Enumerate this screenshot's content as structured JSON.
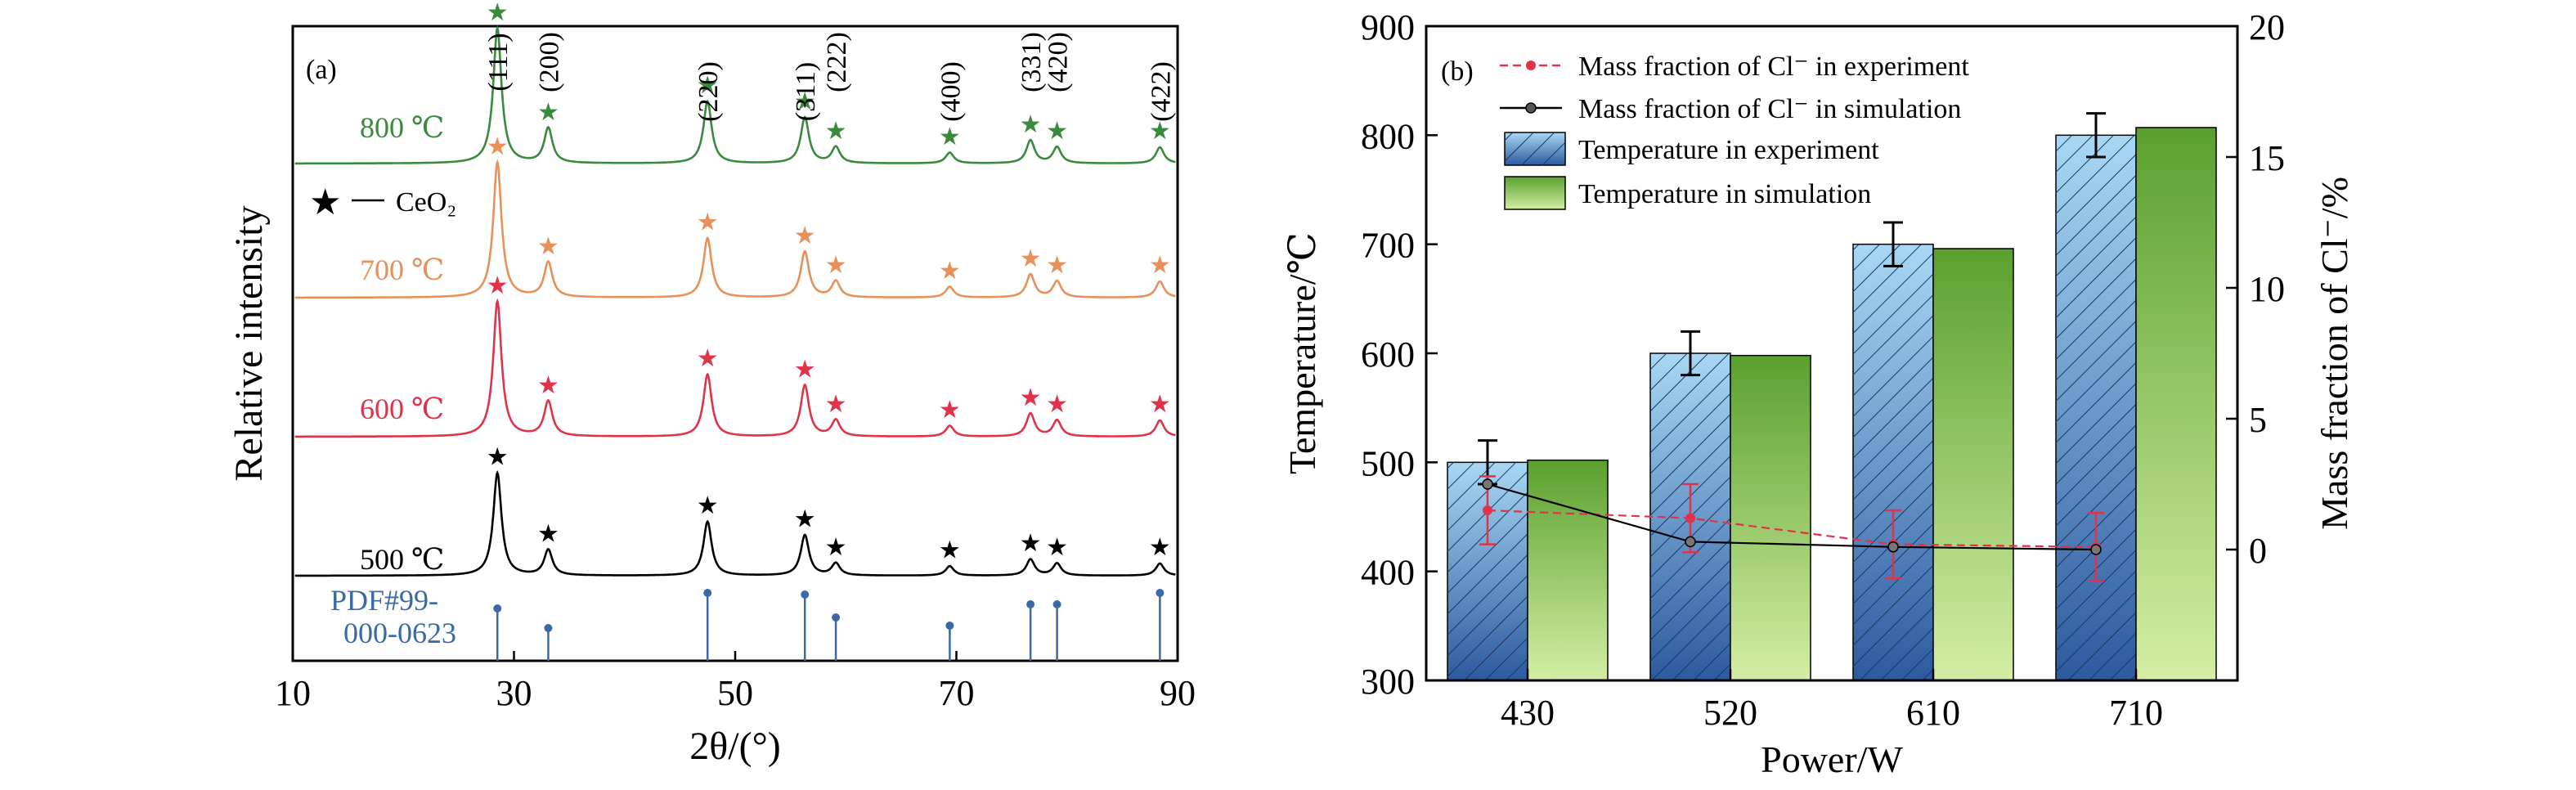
{
  "chart_data": [
    {
      "type": "line",
      "panel_label": "(a)",
      "xlabel": "2θ/(°)",
      "ylabel": "Relative intensity",
      "xlim": [
        10,
        90
      ],
      "xticks": [
        10,
        30,
        50,
        70,
        90
      ],
      "legend": {
        "label": "CeO₂",
        "placement": "upper-left"
      },
      "reference": {
        "name": "PDF#99-000-0623",
        "lines": [
          "PDF#99-",
          "000-0623"
        ],
        "color": "#3a6aa6",
        "peaks": [
          28.5,
          33.1,
          47.5,
          56.3,
          59.1,
          69.4,
          76.7,
          79.1,
          88.4
        ],
        "heights": [
          0.44,
          0.2,
          0.63,
          0.61,
          0.33,
          0.23,
          0.49,
          0.49,
          0.63
        ]
      },
      "peak_labels": [
        {
          "text": "(111)",
          "x": 28.5
        },
        {
          "text": "(200)",
          "x": 33.1
        },
        {
          "text": "(220)",
          "x": 47.5
        },
        {
          "text": "(311)",
          "x": 56.3
        },
        {
          "text": "(222)",
          "x": 59.1
        },
        {
          "text": "(400)",
          "x": 69.4
        },
        {
          "text": "(331)",
          "x": 76.7
        },
        {
          "text": "(420)",
          "x": 79.1
        },
        {
          "text": "(422)",
          "x": 88.4
        }
      ],
      "series": [
        {
          "name": "800 ℃",
          "color": "#3a8a3e",
          "peak_heights": [
            1.0,
            0.26,
            0.46,
            0.34,
            0.12,
            0.08,
            0.17,
            0.12,
            0.12
          ]
        },
        {
          "name": "700 ℃",
          "color": "#e8905a",
          "peak_heights": [
            1.0,
            0.26,
            0.44,
            0.34,
            0.12,
            0.08,
            0.17,
            0.12,
            0.12
          ]
        },
        {
          "name": "600 ℃",
          "color": "#e0334a",
          "peak_heights": [
            1.0,
            0.26,
            0.46,
            0.38,
            0.12,
            0.08,
            0.17,
            0.12,
            0.12
          ]
        },
        {
          "name": "500 ℃",
          "color": "#000000",
          "peak_heights": [
            0.76,
            0.19,
            0.4,
            0.3,
            0.09,
            0.07,
            0.12,
            0.09,
            0.09
          ]
        }
      ]
    },
    {
      "type": "bar",
      "panel_label": "(b)",
      "xlabel": "Power/W",
      "ylabel": "Temperature/℃",
      "y2label": "Mass fraction of Cl⁻/%",
      "categories": [
        "430",
        "520",
        "610",
        "710"
      ],
      "ylim": [
        300,
        900
      ],
      "yticks": [
        300,
        400,
        500,
        600,
        700,
        800,
        900
      ],
      "y2lim": [
        -5,
        20
      ],
      "y2ticks": [
        0,
        5,
        10,
        15,
        20
      ],
      "legend_placement": "top-left",
      "series": [
        {
          "name": "Mass fraction of Cl⁻ in experiment",
          "kind": "line",
          "axis": "right",
          "color": "#e0334a",
          "dashed": true,
          "values": [
            1.5,
            1.2,
            0.2,
            0.1
          ],
          "errors": [
            1.3,
            1.3,
            1.3,
            1.3
          ]
        },
        {
          "name": "Mass fraction of Cl⁻ in simulation",
          "kind": "line",
          "axis": "right",
          "color": "#000000",
          "values": [
            2.5,
            0.3,
            0.1,
            0.0
          ]
        },
        {
          "name": "Temperature in experiment",
          "kind": "bar",
          "axis": "left",
          "color_top": "#a8d8f4",
          "color_bottom": "#2d5aa0",
          "hatched": true,
          "values": [
            500,
            600,
            700,
            800
          ],
          "errors": [
            20,
            20,
            20,
            20
          ]
        },
        {
          "name": "Temperature in simulation",
          "kind": "bar",
          "axis": "left",
          "color_top": "#5aa02e",
          "color_bottom": "#d4eea4",
          "values": [
            502,
            598,
            696,
            807
          ]
        }
      ]
    }
  ]
}
